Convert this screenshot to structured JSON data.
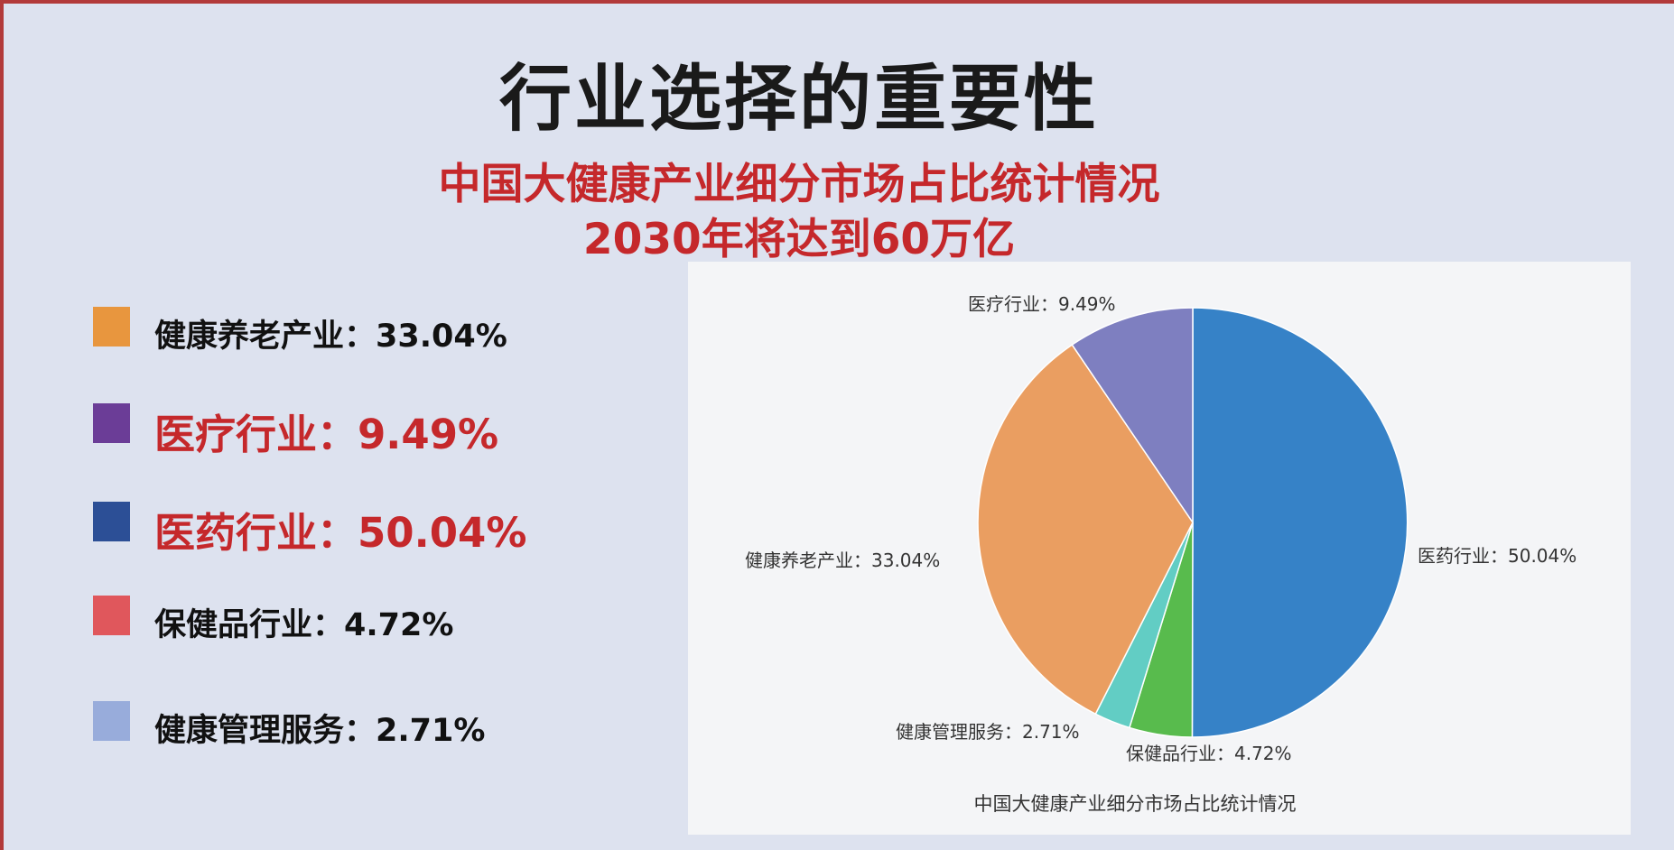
{
  "header": {
    "title": "行业选择的重要性",
    "subtitle1": "中国大健康产业细分市场占比统计情况",
    "subtitle2": "2030年将达到60万亿"
  },
  "legend": [
    {
      "label": "健康养老产业：33.04%",
      "color": "#e8963e",
      "highlight": false
    },
    {
      "label": "医疗行业：9.49%",
      "color": "#6b3d97",
      "highlight": true
    },
    {
      "label": "医药行业：50.04%",
      "color": "#2c4f96",
      "highlight": true
    },
    {
      "label": "保健品行业：4.72%",
      "color": "#e0575c",
      "highlight": false
    },
    {
      "label": "健康管理服务：2.71%",
      "color": "#98acdb",
      "highlight": false
    }
  ],
  "chart_data": {
    "type": "pie",
    "caption": "中国大健康产业细分市场占比统计情况",
    "slices": [
      {
        "name": "医药行业",
        "value": 50.04,
        "label": "医药行业：50.04%",
        "color": "#3682c7"
      },
      {
        "name": "保健品行业",
        "value": 4.72,
        "label": "保健品行业：4.72%",
        "color": "#58bb4d"
      },
      {
        "name": "健康管理服务",
        "value": 2.71,
        "label": "健康管理服务：2.71%",
        "color": "#62cdc4"
      },
      {
        "name": "健康养老产业",
        "value": 33.04,
        "label": "健康养老产业：33.04%",
        "color": "#ea9e61"
      },
      {
        "name": "医疗行业",
        "value": 9.49,
        "label": "医疗行业：9.49%",
        "color": "#7e7fc0"
      }
    ]
  }
}
